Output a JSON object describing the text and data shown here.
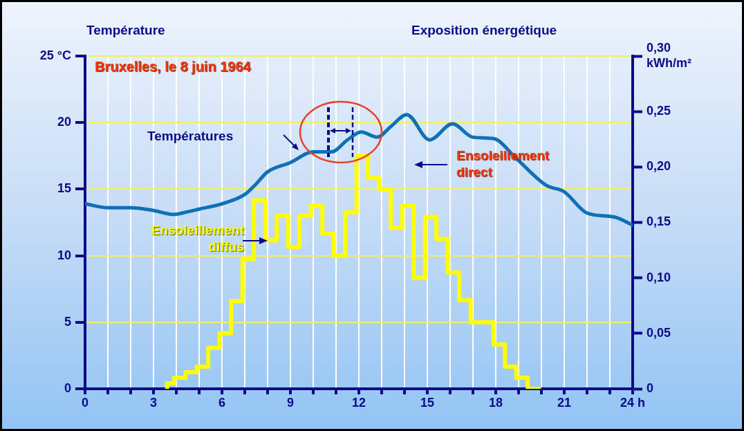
{
  "chart_data": {
    "type": "line",
    "title": "Bruxelles, le 8 juin 1964",
    "ylabel": "Température",
    "y2label": "Exposition énergétique",
    "annotations": [
      "Températures",
      "Ensoleillement direct",
      "Ensoleillement diffus"
    ],
    "xlim": [
      0,
      24
    ],
    "xticks": [
      0,
      {
        "value": 1,
        "label": null
      },
      {
        "value": 2,
        "label": null
      },
      3,
      {
        "value": 4,
        "label": null
      },
      {
        "value": 5,
        "label": null
      },
      6,
      {
        "value": 7,
        "label": null
      },
      {
        "value": 8,
        "label": null
      },
      9,
      {
        "value": 10,
        "label": null
      },
      {
        "value": 11,
        "label": null
      },
      12,
      {
        "value": 13,
        "label": null
      },
      {
        "value": 14,
        "label": null
      },
      15,
      {
        "value": 16,
        "label": null
      },
      {
        "value": 17,
        "label": null
      },
      18,
      {
        "value": 19,
        "label": null
      },
      {
        "value": 20,
        "label": null
      },
      21,
      {
        "value": 22,
        "label": null
      },
      {
        "value": 23,
        "label": null
      },
      {
        "value": 24,
        "label": "24 h"
      }
    ],
    "ylim": [
      0,
      25
    ],
    "yticks": [
      0,
      5,
      10,
      15,
      20,
      {
        "value": 25,
        "label": "25 °C"
      }
    ],
    "y2lim": [
      0,
      0.3
    ],
    "y2ticks": [
      0,
      {
        "value": 0.05,
        "label": "0,05"
      },
      {
        "value": 0.1,
        "label": "0,10"
      },
      {
        "value": 0.15,
        "label": "0,15"
      },
      {
        "value": 0.2,
        "label": "0,20"
      },
      {
        "value": 0.25,
        "label": "0,25"
      },
      {
        "value": 0.3,
        "label": "0,30\nkWh/m²"
      }
    ],
    "grid": true,
    "marker": "none",
    "series": [
      {
        "type": "line",
        "color": "#0f70b7",
        "x": [
          0,
          1,
          2,
          3,
          3.9,
          4.5,
          5,
          6,
          7,
          7.5,
          8,
          9,
          10,
          10.8,
          11.5,
          12.1,
          12.8,
          13.4,
          14.1,
          15.1,
          16.1,
          17,
          17.9,
          18.9,
          20.2,
          21,
          22,
          23.2,
          24
        ],
        "values": [
          13.9,
          13.6,
          13.6,
          13.4,
          13.1,
          13.3,
          13.5,
          13.9,
          14.6,
          15.4,
          16.3,
          17,
          17.8,
          17.8,
          18.7,
          19.3,
          18.9,
          19.7,
          20.6,
          18.7,
          19.9,
          18.9,
          18.8,
          17.3,
          15.3,
          14.8,
          13.2,
          12.9,
          12.3
        ]
      },
      {
        "type": "step",
        "axis": "y2",
        "color": "#ffff00",
        "x": [
          3.6,
          3.9,
          4.4,
          4.9,
          5.4,
          5.9,
          6.4,
          6.9,
          7.4,
          7.9,
          8.4,
          8.9,
          9.4,
          9.9,
          10.4,
          10.9,
          11.4,
          11.9,
          12.4,
          12.9,
          13.4,
          13.9,
          14.4,
          14.9,
          15.4,
          15.9,
          16.4,
          16.9,
          17.4,
          17.9,
          18.4,
          18.9,
          19.4,
          19.9
        ],
        "values": [
          0,
          0.005,
          0.01,
          0.015,
          0.02,
          0.037,
          0.05,
          0.079,
          0.117,
          0.17,
          0.134,
          0.156,
          0.128,
          0.156,
          0.165,
          0.14,
          0.12,
          0.159,
          0.21,
          0.19,
          0.18,
          0.145,
          0.165,
          0.1,
          0.155,
          0.135,
          0.105,
          0.08,
          0.06,
          0.06,
          0.04,
          0.02,
          0.01,
          0
        ]
      }
    ]
  }
}
